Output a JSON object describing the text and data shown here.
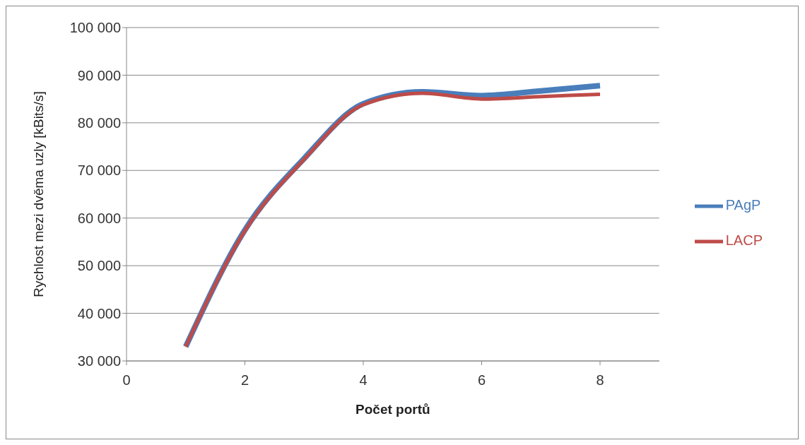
{
  "chart_data": {
    "type": "line",
    "xlabel": "Počet portů",
    "ylabel": "Rychlost mezi dvěma uzly [kBits/s]",
    "x": [
      1,
      2,
      3,
      4,
      5,
      6,
      7,
      8
    ],
    "series": [
      {
        "name": "PAgP",
        "color": "#4a7ebb",
        "values": [
          33000,
          57500,
          72500,
          84000,
          86500,
          85700,
          86700,
          87800
        ]
      },
      {
        "name": "LACP",
        "color": "#be4b48",
        "values": [
          33000,
          57300,
          72300,
          83800,
          86200,
          85000,
          85500,
          86000
        ]
      }
    ],
    "xlim": [
      0,
      9
    ],
    "xticks": [
      0,
      2,
      4,
      6,
      8
    ],
    "ylim": [
      30000,
      100000
    ],
    "yticks": [
      {
        "value": 30000,
        "label": "30 000"
      },
      {
        "value": 40000,
        "label": "40 000"
      },
      {
        "value": 50000,
        "label": "50 000"
      },
      {
        "value": 60000,
        "label": "60 000"
      },
      {
        "value": 70000,
        "label": "70 000"
      },
      {
        "value": 80000,
        "label": "80 000"
      },
      {
        "value": 90000,
        "label": "90 000"
      },
      {
        "value": 100000,
        "label": "100 000"
      }
    ],
    "grid": "y",
    "legend": "right",
    "marker": "none",
    "line_style": "solid"
  }
}
